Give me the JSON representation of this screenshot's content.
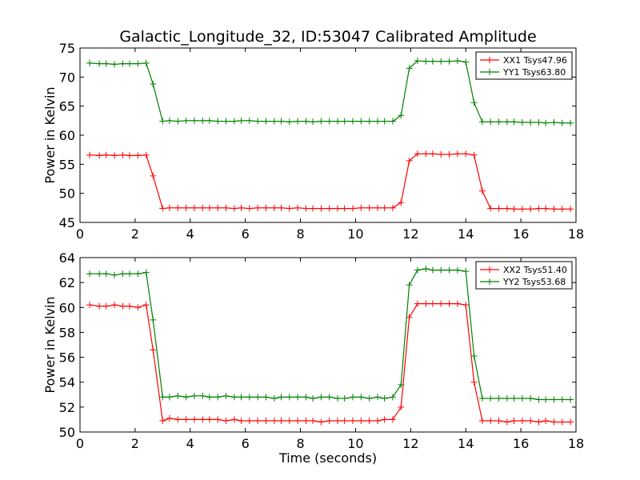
{
  "title": "Galactic_Longitude_32, ID:53047 Calibrated Amplitude",
  "chart_data": [
    {
      "type": "line",
      "title": "Galactic_Longitude_32, ID:53047 Calibrated Amplitude",
      "xlabel": "",
      "ylabel": "Power in Kelvin",
      "xlim": [
        0,
        18
      ],
      "ylim": [
        45,
        75
      ],
      "xticks": [
        0,
        2,
        4,
        6,
        8,
        10,
        12,
        14,
        16,
        18
      ],
      "yticks": [
        45,
        50,
        55,
        60,
        65,
        70,
        75
      ],
      "legend_position": "top-right",
      "x": [
        0.35,
        0.7,
        0.95,
        1.25,
        1.55,
        1.8,
        2.1,
        2.4,
        2.65,
        3.0,
        3.25,
        3.55,
        3.85,
        4.15,
        4.45,
        4.7,
        5.0,
        5.3,
        5.6,
        5.85,
        6.15,
        6.45,
        6.75,
        7.05,
        7.3,
        7.6,
        7.9,
        8.2,
        8.45,
        8.75,
        9.05,
        9.35,
        9.6,
        9.9,
        10.2,
        10.5,
        10.8,
        11.05,
        11.35,
        11.65,
        11.95,
        12.25,
        12.55,
        12.8,
        13.1,
        13.4,
        13.7,
        14.0,
        14.3,
        14.6,
        14.9,
        15.2,
        15.5,
        15.75,
        16.05,
        16.35,
        16.65,
        16.9,
        17.2,
        17.5,
        17.8
      ],
      "series": [
        {
          "name": "XX1 Tsys47.96",
          "color": "#ff0000",
          "values": [
            56.6,
            56.5,
            56.6,
            56.5,
            56.6,
            56.5,
            56.5,
            56.6,
            53.0,
            47.4,
            47.5,
            47.5,
            47.5,
            47.5,
            47.5,
            47.5,
            47.5,
            47.5,
            47.4,
            47.5,
            47.4,
            47.5,
            47.5,
            47.5,
            47.5,
            47.4,
            47.5,
            47.4,
            47.4,
            47.4,
            47.4,
            47.4,
            47.4,
            47.4,
            47.5,
            47.5,
            47.5,
            47.5,
            47.5,
            48.4,
            55.6,
            56.8,
            56.8,
            56.8,
            56.7,
            56.7,
            56.8,
            56.8,
            56.6,
            50.4,
            47.4,
            47.4,
            47.4,
            47.3,
            47.3,
            47.3,
            47.4,
            47.4,
            47.3,
            47.3,
            47.3
          ]
        },
        {
          "name": "YY1 Tsys63.80",
          "color": "#008000",
          "values": [
            72.4,
            72.3,
            72.3,
            72.2,
            72.3,
            72.3,
            72.3,
            72.4,
            68.8,
            62.4,
            62.5,
            62.4,
            62.5,
            62.5,
            62.5,
            62.5,
            62.4,
            62.4,
            62.4,
            62.5,
            62.5,
            62.4,
            62.4,
            62.4,
            62.4,
            62.3,
            62.4,
            62.4,
            62.3,
            62.4,
            62.4,
            62.4,
            62.4,
            62.4,
            62.4,
            62.4,
            62.4,
            62.4,
            62.4,
            63.4,
            71.5,
            72.8,
            72.7,
            72.7,
            72.7,
            72.7,
            72.8,
            72.6,
            65.6,
            62.3,
            62.3,
            62.3,
            62.3,
            62.3,
            62.2,
            62.2,
            62.2,
            62.1,
            62.2,
            62.1,
            62.1
          ]
        }
      ]
    },
    {
      "type": "line",
      "title": "",
      "xlabel": "Time (seconds)",
      "ylabel": "Power in Kelvin",
      "xlim": [
        0,
        18
      ],
      "ylim": [
        50,
        64
      ],
      "xticks": [
        0,
        2,
        4,
        6,
        8,
        10,
        12,
        14,
        16,
        18
      ],
      "yticks": [
        50,
        52,
        54,
        56,
        58,
        60,
        62,
        64
      ],
      "legend_position": "top-right",
      "x": [
        0.35,
        0.7,
        0.95,
        1.25,
        1.55,
        1.8,
        2.1,
        2.4,
        2.65,
        3.0,
        3.25,
        3.55,
        3.85,
        4.15,
        4.45,
        4.7,
        5.0,
        5.3,
        5.6,
        5.85,
        6.15,
        6.45,
        6.75,
        7.05,
        7.3,
        7.6,
        7.9,
        8.2,
        8.45,
        8.75,
        9.05,
        9.35,
        9.6,
        9.9,
        10.2,
        10.5,
        10.8,
        11.05,
        11.35,
        11.65,
        11.95,
        12.25,
        12.55,
        12.8,
        13.1,
        13.4,
        13.7,
        14.0,
        14.3,
        14.6,
        14.9,
        15.2,
        15.5,
        15.75,
        16.05,
        16.35,
        16.65,
        16.9,
        17.2,
        17.5,
        17.8
      ],
      "series": [
        {
          "name": "XX2 Tsys51.40",
          "color": "#ff0000",
          "values": [
            60.2,
            60.1,
            60.1,
            60.2,
            60.1,
            60.1,
            60.0,
            60.2,
            56.6,
            50.9,
            51.1,
            51.0,
            51.0,
            51.0,
            51.0,
            51.0,
            51.0,
            50.9,
            51.0,
            50.9,
            50.9,
            50.9,
            50.9,
            50.9,
            50.9,
            50.9,
            50.9,
            50.9,
            50.9,
            50.8,
            50.9,
            50.9,
            50.9,
            50.9,
            50.9,
            50.9,
            50.9,
            51.0,
            51.0,
            52.0,
            59.2,
            60.3,
            60.3,
            60.3,
            60.3,
            60.3,
            60.3,
            60.2,
            54.0,
            50.9,
            50.9,
            50.9,
            50.8,
            50.9,
            50.9,
            50.9,
            50.8,
            50.9,
            50.8,
            50.8,
            50.8
          ]
        },
        {
          "name": "YY2 Tsys53.68",
          "color": "#008000",
          "values": [
            62.7,
            62.7,
            62.7,
            62.6,
            62.7,
            62.7,
            62.7,
            62.8,
            59.0,
            52.8,
            52.8,
            52.9,
            52.8,
            52.9,
            52.9,
            52.8,
            52.8,
            52.9,
            52.8,
            52.8,
            52.8,
            52.8,
            52.8,
            52.7,
            52.8,
            52.8,
            52.8,
            52.8,
            52.7,
            52.8,
            52.8,
            52.7,
            52.7,
            52.8,
            52.8,
            52.7,
            52.8,
            52.7,
            52.8,
            53.8,
            61.8,
            63.0,
            63.1,
            63.0,
            63.0,
            63.0,
            63.0,
            62.9,
            56.1,
            52.7,
            52.7,
            52.7,
            52.7,
            52.7,
            52.7,
            52.7,
            52.6,
            52.6,
            52.6,
            52.6,
            52.6
          ]
        }
      ]
    }
  ]
}
